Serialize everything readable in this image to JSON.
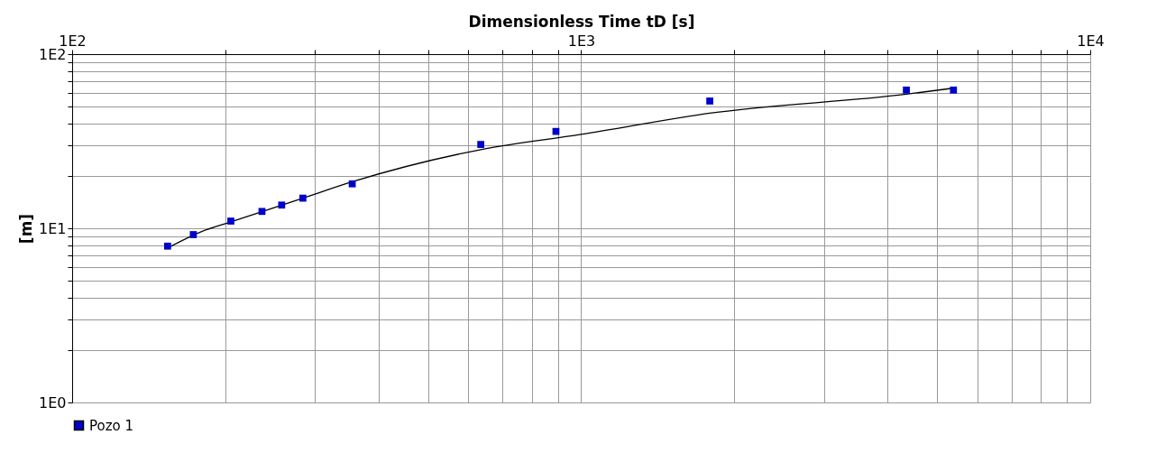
{
  "chart_data": {
    "type": "scatter",
    "xlabel": "Dimensionless Time tD [s]",
    "ylabel": "[m]",
    "log": "xy",
    "grid": true,
    "legend": "bottom left",
    "xlim": [
      100,
      10000
    ],
    "ylim": [
      1,
      100
    ],
    "xticks": [
      {
        "value": 100,
        "label": "1E2"
      },
      {
        "value": 200,
        "label": null
      },
      {
        "value": 300,
        "label": null
      },
      {
        "value": 400,
        "label": null
      },
      {
        "value": 500,
        "label": null
      },
      {
        "value": 600,
        "label": null
      },
      {
        "value": 700,
        "label": null
      },
      {
        "value": 800,
        "label": null
      },
      {
        "value": 900,
        "label": null
      },
      {
        "value": 1000,
        "label": "1E3"
      },
      {
        "value": 2000,
        "label": null
      },
      {
        "value": 3000,
        "label": null
      },
      {
        "value": 4000,
        "label": null
      },
      {
        "value": 5000,
        "label": null
      },
      {
        "value": 6000,
        "label": null
      },
      {
        "value": 7000,
        "label": null
      },
      {
        "value": 8000,
        "label": null
      },
      {
        "value": 9000,
        "label": null
      },
      {
        "value": 10000,
        "label": "1E4"
      }
    ],
    "yticks": [
      {
        "value": 1,
        "label": "1E0"
      },
      {
        "value": 2,
        "label": null
      },
      {
        "value": 3,
        "label": null
      },
      {
        "value": 4,
        "label": null
      },
      {
        "value": 5,
        "label": null
      },
      {
        "value": 6,
        "label": null
      },
      {
        "value": 7,
        "label": null
      },
      {
        "value": 8,
        "label": null
      },
      {
        "value": 9,
        "label": null
      },
      {
        "value": 10,
        "label": "1E1"
      },
      {
        "value": 20,
        "label": null
      },
      {
        "value": 30,
        "label": null
      },
      {
        "value": 40,
        "label": null
      },
      {
        "value": 50,
        "label": null
      },
      {
        "value": 60,
        "label": null
      },
      {
        "value": 70,
        "label": null
      },
      {
        "value": 80,
        "label": null
      },
      {
        "value": 90,
        "label": null
      },
      {
        "value": 100,
        "label": "1E2"
      }
    ],
    "series": [
      {
        "type": "line",
        "color": "#000000",
        "line_style": "solid",
        "marker": "none",
        "x": [
          154,
          180,
          205,
          284,
          355,
          635,
          1000,
          1789,
          4353,
          5386
        ],
        "values": [
          7.7,
          9.6,
          10.9,
          14.9,
          18.5,
          28.3,
          34.6,
          45.8,
          58.9,
          63.8
        ]
      },
      {
        "name": "Pozo 1",
        "color": "#0000cc",
        "marker": "square",
        "x": [
          154,
          173,
          205,
          236,
          258,
          284,
          355,
          635,
          892,
          1789,
          4353,
          5386
        ],
        "values": [
          7.9,
          9.2,
          11.0,
          12.5,
          13.6,
          14.9,
          18.0,
          30.3,
          36.0,
          53.8,
          62.2,
          62.2
        ]
      }
    ]
  }
}
